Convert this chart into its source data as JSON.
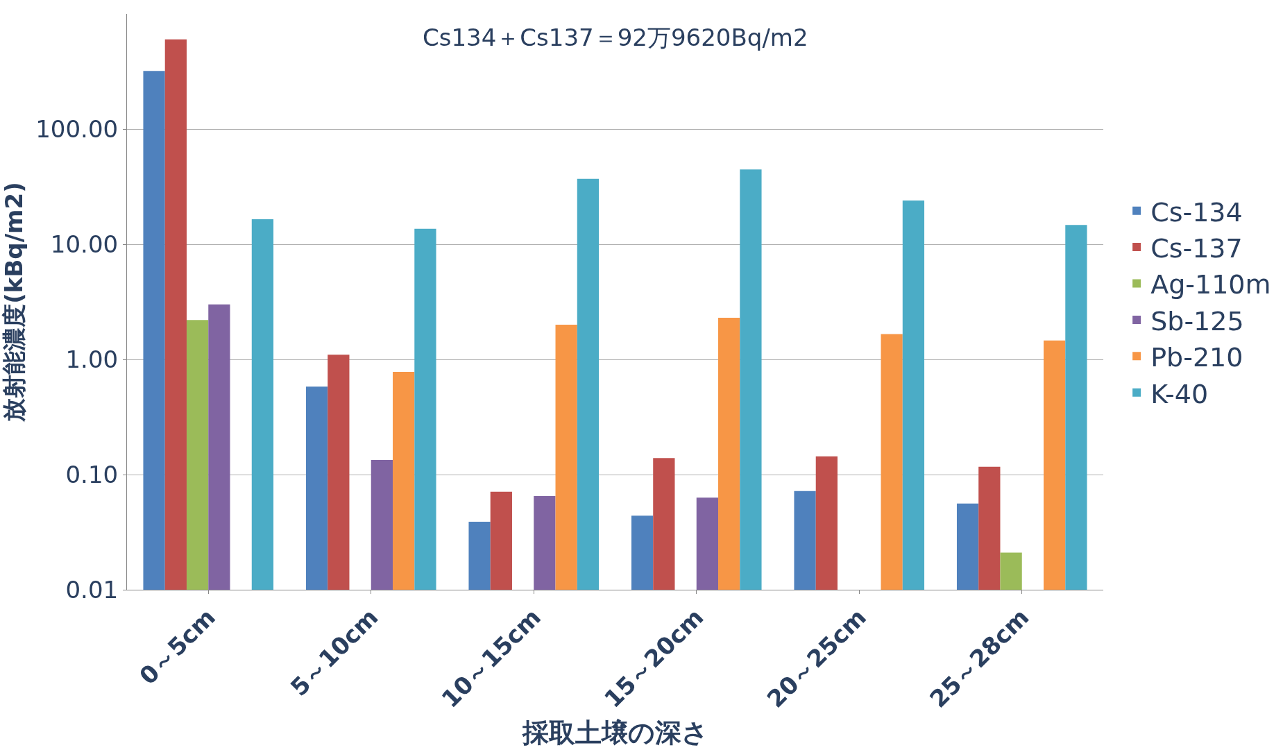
{
  "chart_data": {
    "type": "bar",
    "title": "Cs134＋Cs137＝92万9620Bq/m2",
    "xlabel": "採取土壌の深さ",
    "ylabel": "放射能濃度(kBq/m2)",
    "categories": [
      "0～5cm",
      "5～10cm",
      "10～15cm",
      "15～20cm",
      "20～25cm",
      "25～28cm"
    ],
    "series": [
      {
        "name": "Cs-134",
        "color": "#4f81bd",
        "values": [
          320,
          0.58,
          0.039,
          0.044,
          0.072,
          0.056
        ]
      },
      {
        "name": "Cs-137",
        "color": "#c0504d",
        "values": [
          600,
          1.1,
          0.071,
          0.139,
          0.144,
          0.117
        ]
      },
      {
        "name": "Ag-110m",
        "color": "#9bbb59",
        "values": [
          2.2,
          null,
          null,
          null,
          null,
          0.021
        ]
      },
      {
        "name": "Sb-125",
        "color": "#8064a2",
        "values": [
          3.0,
          0.134,
          0.065,
          0.063,
          null,
          null
        ]
      },
      {
        "name": "Pb-210",
        "color": "#f79646",
        "values": [
          null,
          0.78,
          2.0,
          2.3,
          1.66,
          1.46
        ]
      },
      {
        "name": "K-40",
        "color": "#4bacc6",
        "values": [
          16.5,
          13.6,
          36.9,
          44.6,
          24,
          14.7
        ]
      }
    ],
    "log": true,
    "ylim": [
      0.01,
      1000
    ],
    "yticks": [
      {
        "value": 0.01,
        "label": "0.01"
      },
      {
        "value": 0.1,
        "label": "0.10"
      },
      {
        "value": 1,
        "label": "1.00"
      },
      {
        "value": 10,
        "label": "10.00"
      },
      {
        "value": 100,
        "label": "100.00"
      }
    ],
    "grid": "y",
    "legend": "right"
  }
}
